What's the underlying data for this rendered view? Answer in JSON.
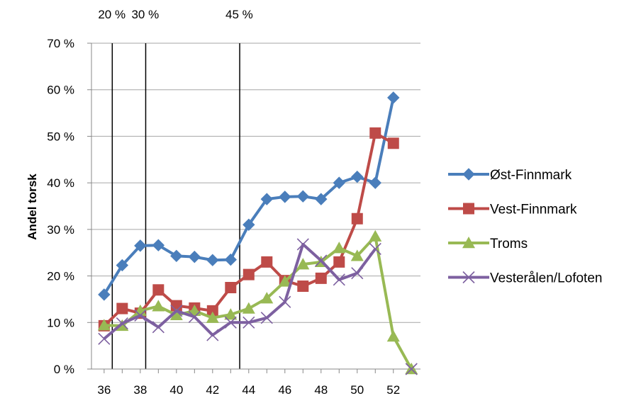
{
  "chart_data": {
    "type": "line",
    "title": "",
    "xlabel": "",
    "ylabel": "Andel torsk",
    "x": [
      36,
      37,
      38,
      39,
      40,
      41,
      42,
      43,
      44,
      45,
      46,
      47,
      48,
      49,
      50,
      51,
      52,
      53
    ],
    "xticks": [
      "36",
      "38",
      "40",
      "42",
      "44",
      "46",
      "48",
      "50",
      "52"
    ],
    "yticks": [
      "0 %",
      "10 %",
      "20 %",
      "30 %",
      "40 %",
      "50 %",
      "60 %",
      "70 %"
    ],
    "ylim": [
      0,
      70
    ],
    "xlim": [
      35.3,
      53.5
    ],
    "grid": "horizontal",
    "legend_position": "right",
    "vertical_lines": [
      {
        "x": 36.45,
        "label": "20 %"
      },
      {
        "x": 38.3,
        "label": "30 %"
      },
      {
        "x": 43.5,
        "label": "45 %"
      }
    ],
    "series": [
      {
        "name": "Øst-Finnmark",
        "color": "#4a7ebb",
        "marker": "diamond",
        "x": [
          36,
          37,
          38,
          39,
          40,
          41,
          42,
          43,
          44,
          45,
          46,
          47,
          48,
          49,
          50,
          51,
          52
        ],
        "values": [
          16,
          22.3,
          26.5,
          26.6,
          24.3,
          24.1,
          23.4,
          23.5,
          31,
          36.5,
          37,
          37.1,
          36.5,
          40,
          41.3,
          40,
          58.3
        ]
      },
      {
        "name": "Vest-Finnmark",
        "color": "#be4b48",
        "marker": "square",
        "x": [
          36,
          37,
          38,
          39,
          40,
          41,
          42,
          43,
          44,
          45,
          46,
          47,
          48,
          49,
          50,
          51,
          52
        ],
        "values": [
          9.3,
          13,
          12,
          17,
          13.6,
          13.1,
          12.5,
          17.5,
          20.3,
          23,
          19,
          17.8,
          19.5,
          23,
          32.3,
          50.7,
          48.5
        ]
      },
      {
        "name": "Troms",
        "color": "#98b954",
        "marker": "triangle",
        "x": [
          36,
          37,
          38,
          39,
          40,
          41,
          42,
          43,
          44,
          45,
          46,
          47,
          48,
          49,
          50,
          51,
          52,
          53
        ],
        "values": [
          9.4,
          9.3,
          12.5,
          13.5,
          11.6,
          12.5,
          11,
          11.7,
          13,
          15.2,
          18.8,
          22.5,
          23,
          26,
          24.3,
          28.5,
          7,
          0
        ]
      },
      {
        "name": "Vesterålen/Lofoten",
        "color": "#7d60a0",
        "marker": "x",
        "x": [
          36,
          37,
          38,
          39,
          40,
          41,
          42,
          43,
          44,
          45,
          46,
          47,
          48,
          49,
          50,
          51,
          52,
          53
        ],
        "values": [
          6.5,
          9.8,
          11.5,
          9,
          12.5,
          11.2,
          7.3,
          10,
          10,
          11,
          14.4,
          26.8,
          23.3,
          19.2,
          20.6,
          25.8,
          null,
          0
        ]
      }
    ]
  }
}
